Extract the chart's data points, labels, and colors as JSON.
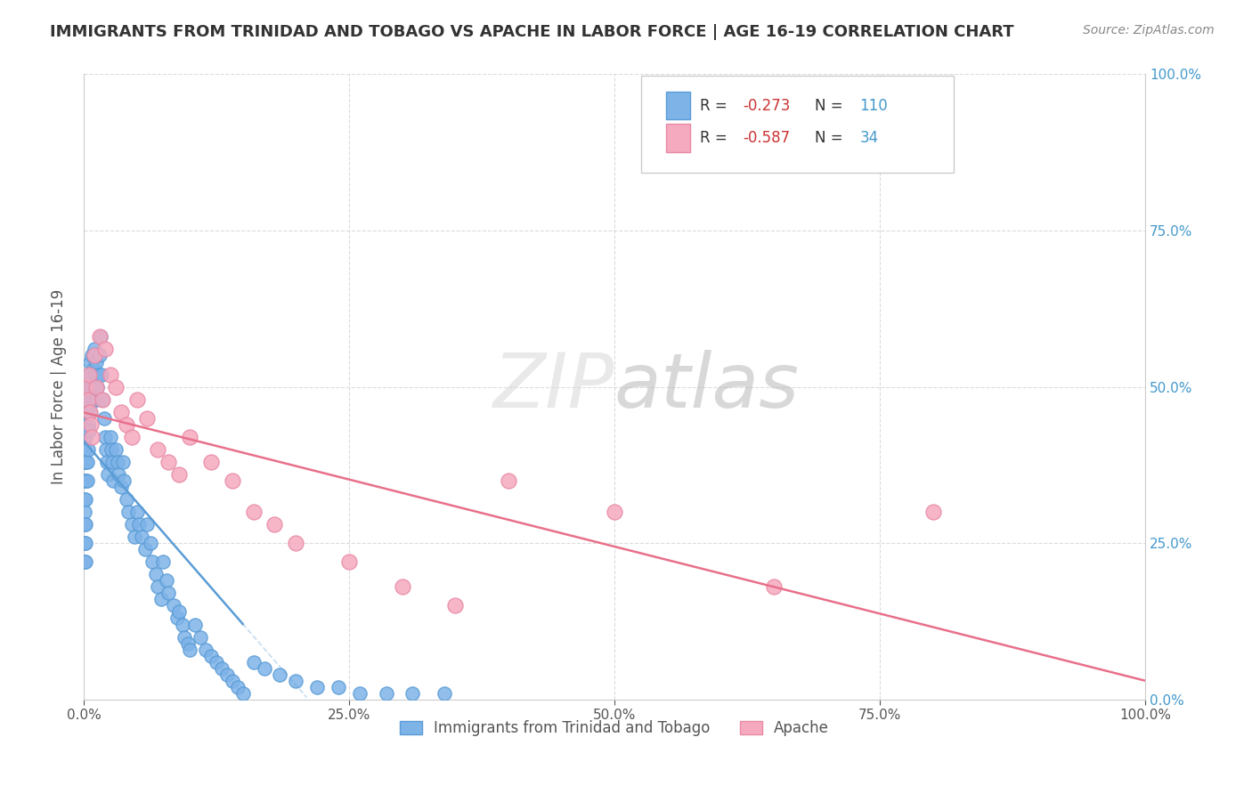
{
  "title": "IMMIGRANTS FROM TRINIDAD AND TOBAGO VS APACHE IN LABOR FORCE | AGE 16-19 CORRELATION CHART",
  "source_text": "Source: ZipAtlas.com",
  "ylabel": "In Labor Force | Age 16-19",
  "xlim": [
    0.0,
    1.0
  ],
  "ylim": [
    0.0,
    1.0
  ],
  "xticks": [
    0.0,
    0.25,
    0.5,
    0.75,
    1.0
  ],
  "xtick_labels": [
    "0.0%",
    "25.0%",
    "50.0%",
    "75.0%",
    "100.0%"
  ],
  "yticks": [
    0.0,
    0.25,
    0.5,
    0.75,
    1.0
  ],
  "ytick_labels_right": [
    "0.0%",
    "25.0%",
    "50.0%",
    "75.0%",
    "100.0%"
  ],
  "series1_name": "Immigrants from Trinidad and Tobago",
  "series1_color": "#7EB3E8",
  "series1_edge_color": "#5A9CD6",
  "series1_R": -0.273,
  "series1_N": 110,
  "series2_name": "Apache",
  "series2_color": "#F5AABF",
  "series2_edge_color": "#E88AA6",
  "series2_R": -0.587,
  "series2_N": 34,
  "watermark_zip": "ZIP",
  "watermark_atlas": "atlas",
  "background_color": "#ffffff",
  "grid_color": "#cccccc",
  "title_color": "#333333",
  "axis_color": "#555555",
  "source_color": "#888888",
  "legend_R_color": "#CC3333",
  "legend_N_color": "#4499CC",
  "series1_x": [
    0.001,
    0.001,
    0.001,
    0.001,
    0.001,
    0.001,
    0.001,
    0.001,
    0.001,
    0.001,
    0.002,
    0.002,
    0.002,
    0.002,
    0.002,
    0.002,
    0.002,
    0.002,
    0.002,
    0.003,
    0.003,
    0.003,
    0.003,
    0.003,
    0.004,
    0.004,
    0.004,
    0.004,
    0.005,
    0.005,
    0.005,
    0.006,
    0.006,
    0.006,
    0.007,
    0.007,
    0.008,
    0.008,
    0.009,
    0.009,
    0.01,
    0.01,
    0.011,
    0.012,
    0.012,
    0.013,
    0.014,
    0.015,
    0.016,
    0.017,
    0.018,
    0.019,
    0.02,
    0.021,
    0.022,
    0.023,
    0.025,
    0.026,
    0.027,
    0.028,
    0.03,
    0.032,
    0.033,
    0.035,
    0.037,
    0.038,
    0.04,
    0.042,
    0.045,
    0.048,
    0.05,
    0.052,
    0.055,
    0.058,
    0.06,
    0.063,
    0.065,
    0.068,
    0.07,
    0.073,
    0.075,
    0.078,
    0.08,
    0.085,
    0.088,
    0.09,
    0.093,
    0.095,
    0.098,
    0.1,
    0.105,
    0.11,
    0.115,
    0.12,
    0.125,
    0.13,
    0.135,
    0.14,
    0.145,
    0.15,
    0.16,
    0.17,
    0.185,
    0.2,
    0.22,
    0.24,
    0.26,
    0.285,
    0.31,
    0.34
  ],
  "series1_y": [
    0.45,
    0.42,
    0.4,
    0.38,
    0.35,
    0.32,
    0.3,
    0.28,
    0.25,
    0.22,
    0.48,
    0.45,
    0.42,
    0.38,
    0.35,
    0.32,
    0.28,
    0.25,
    0.22,
    0.5,
    0.46,
    0.43,
    0.38,
    0.35,
    0.52,
    0.48,
    0.44,
    0.4,
    0.5,
    0.47,
    0.43,
    0.54,
    0.5,
    0.46,
    0.52,
    0.48,
    0.55,
    0.5,
    0.53,
    0.48,
    0.56,
    0.5,
    0.52,
    0.54,
    0.48,
    0.5,
    0.52,
    0.55,
    0.58,
    0.52,
    0.48,
    0.45,
    0.42,
    0.4,
    0.38,
    0.36,
    0.42,
    0.4,
    0.38,
    0.35,
    0.4,
    0.38,
    0.36,
    0.34,
    0.38,
    0.35,
    0.32,
    0.3,
    0.28,
    0.26,
    0.3,
    0.28,
    0.26,
    0.24,
    0.28,
    0.25,
    0.22,
    0.2,
    0.18,
    0.16,
    0.22,
    0.19,
    0.17,
    0.15,
    0.13,
    0.14,
    0.12,
    0.1,
    0.09,
    0.08,
    0.12,
    0.1,
    0.08,
    0.07,
    0.06,
    0.05,
    0.04,
    0.03,
    0.02,
    0.01,
    0.06,
    0.05,
    0.04,
    0.03,
    0.02,
    0.02,
    0.01,
    0.01,
    0.01,
    0.01
  ],
  "series2_x": [
    0.002,
    0.004,
    0.005,
    0.006,
    0.007,
    0.008,
    0.01,
    0.012,
    0.015,
    0.018,
    0.02,
    0.025,
    0.03,
    0.035,
    0.04,
    0.045,
    0.05,
    0.06,
    0.07,
    0.08,
    0.09,
    0.1,
    0.12,
    0.14,
    0.16,
    0.18,
    0.2,
    0.25,
    0.3,
    0.35,
    0.4,
    0.5,
    0.65,
    0.8
  ],
  "series2_y": [
    0.5,
    0.48,
    0.52,
    0.46,
    0.44,
    0.42,
    0.55,
    0.5,
    0.58,
    0.48,
    0.56,
    0.52,
    0.5,
    0.46,
    0.44,
    0.42,
    0.48,
    0.45,
    0.4,
    0.38,
    0.36,
    0.42,
    0.38,
    0.35,
    0.3,
    0.28,
    0.25,
    0.22,
    0.18,
    0.15,
    0.35,
    0.3,
    0.18,
    0.3
  ]
}
